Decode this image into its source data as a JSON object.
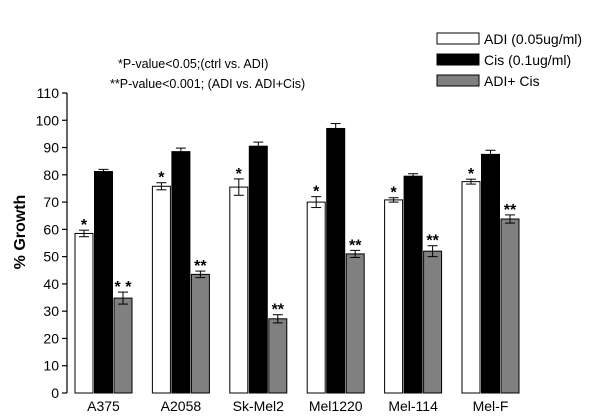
{
  "chart_data": {
    "type": "bar",
    "categories": [
      "A375",
      "A2058",
      "Sk-Mel2",
      "Mel1220",
      "Mel-114",
      "Mel-F"
    ],
    "series": [
      {
        "name": "ADI (0.05ug/ml)",
        "color": "#ffffff",
        "values": [
          58.5,
          75.8,
          75.5,
          70.0,
          70.8,
          77.5
        ],
        "errors": [
          1.2,
          1.3,
          3.0,
          2.0,
          0.8,
          0.9
        ],
        "significance": [
          "*",
          "*",
          "*",
          "*",
          "*",
          "*"
        ]
      },
      {
        "name": "Cis (0.1ug/ml)",
        "color": "#000000",
        "values": [
          81.2,
          88.5,
          90.5,
          97.0,
          79.5,
          87.5
        ],
        "errors": [
          0.8,
          1.3,
          1.5,
          1.8,
          0.9,
          1.5
        ],
        "significance": [
          "",
          "",
          "",
          "",
          "",
          ""
        ]
      },
      {
        "name": "ADI+ Cis",
        "color": "#808080",
        "values": [
          34.8,
          43.5,
          27.2,
          51.0,
          52.0,
          63.8
        ],
        "errors": [
          2.2,
          1.2,
          1.5,
          1.3,
          2.0,
          1.5
        ],
        "significance": [
          "* *",
          "**",
          "**",
          "**",
          "**",
          "**"
        ]
      }
    ],
    "ylabel": "% Growth",
    "xlabel": "",
    "title": "",
    "ylim": [
      0,
      110
    ],
    "yticks": [
      0,
      10,
      20,
      30,
      40,
      50,
      60,
      70,
      80,
      90,
      100,
      110
    ],
    "grid": false,
    "legend_position": "top-right",
    "annotations": [
      "*P-value<0.05;(ctrl vs. ADI)",
      "**P-value<0.001; (ADI vs. ADI+Cis)"
    ]
  }
}
